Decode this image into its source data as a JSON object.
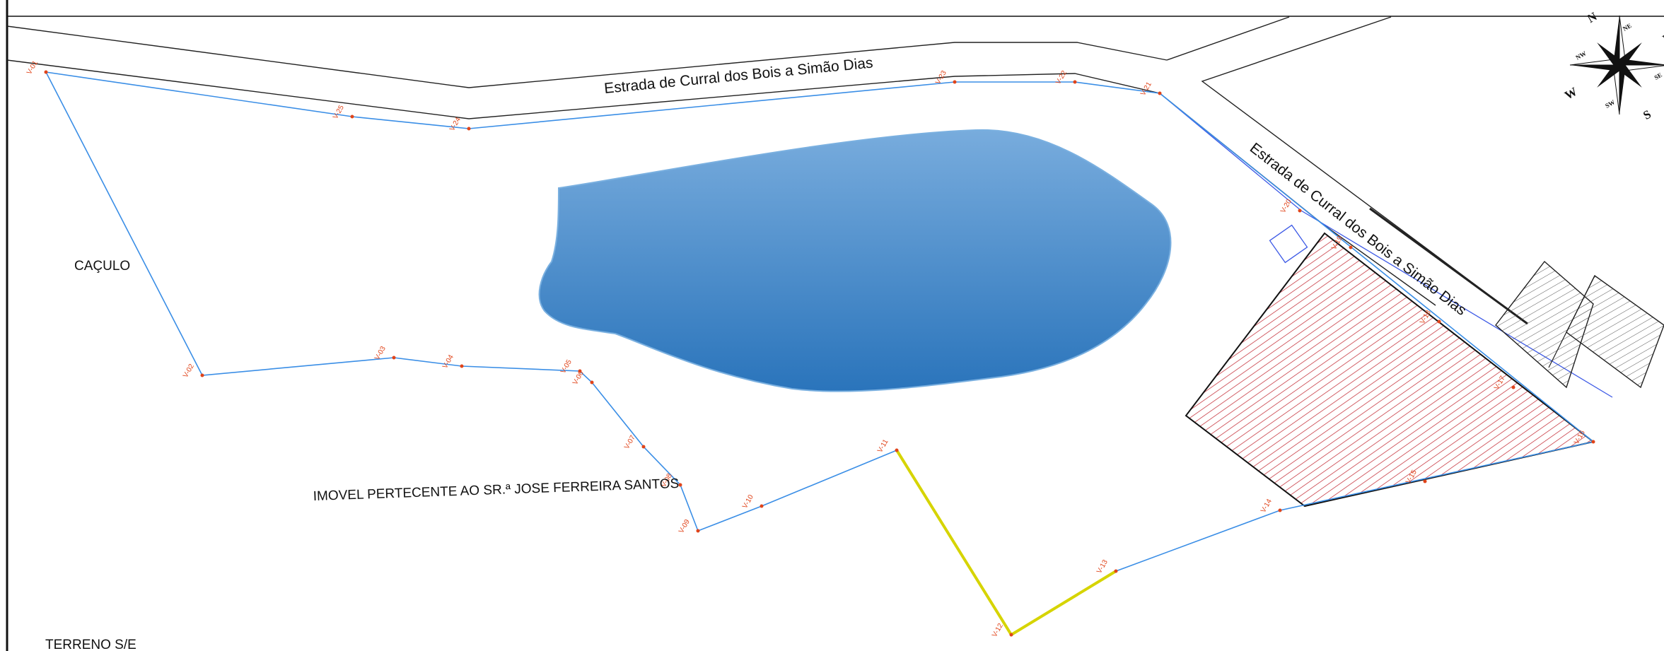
{
  "roads": [
    {
      "id": "road-top",
      "label": "Estrada de Curral dos Bois a Simão Dias"
    },
    {
      "id": "road-diagonal",
      "label": "Estrada de Curral dos Bois a Simão Dias"
    }
  ],
  "areas": {
    "caculo": "CAÇULO",
    "imovel": "IMOVEL PERTECENTE AO SR.ª JOSE FERREIRA SANTOS",
    "terreno": "TERRENO S/E"
  },
  "pond_label": "",
  "compass": {
    "n": "N",
    "e": "E",
    "s": "S",
    "w": "W",
    "ne": "NE",
    "se": "SE",
    "sw": "SW",
    "nw": "NW",
    "nne": "NE",
    "ese": "SE",
    "ssw": "SW",
    "wnw": "NW"
  },
  "vertices": [
    "V-01",
    "V-02",
    "V-03",
    "V-04",
    "V-05",
    "V-06",
    "V-07",
    "V-08",
    "V-09",
    "V-10",
    "V-11",
    "V-12",
    "V-13",
    "V-14",
    "V-15",
    "V-16",
    "V-17",
    "V-18",
    "V-19",
    "V-20",
    "V-21",
    "V-22",
    "V-23",
    "V-24",
    "V-25"
  ],
  "colors": {
    "boundary": "#3a8ee6",
    "highlight_segment": "#d6d400",
    "pond_light": "#74a9dc",
    "pond_dark": "#2a76bd",
    "hatch_red": "#c0202a",
    "road_line": "#222222",
    "vertex_text": "#e0441a"
  }
}
